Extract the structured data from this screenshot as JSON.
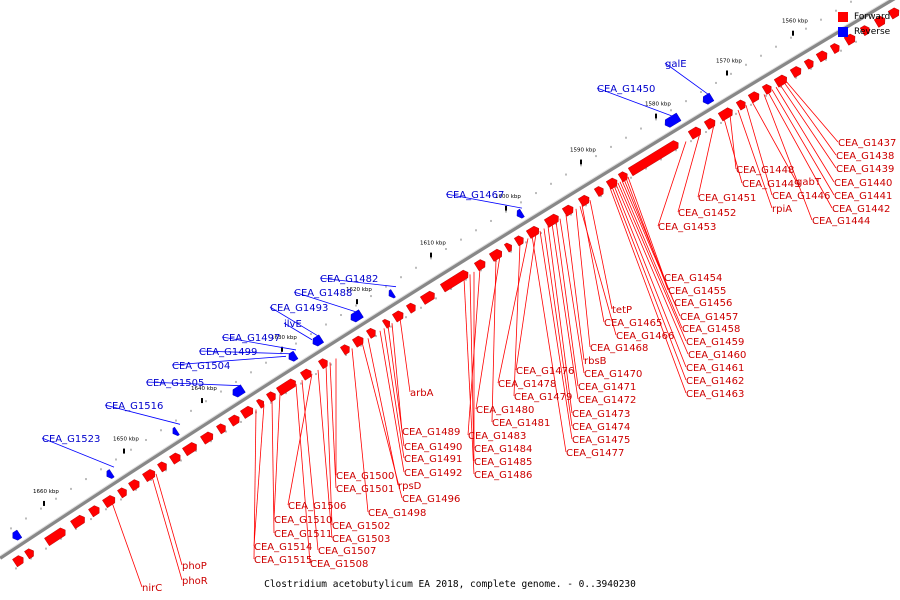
{
  "caption": "Clostridium acetobutylicum EA 2018, complete genome. - 0..3940230",
  "legend": [
    {
      "label": "Forward",
      "color": "#ff0000"
    },
    {
      "label": "Reverse",
      "color": "#0000ff"
    }
  ],
  "colors": {
    "forward": "#ff0000",
    "reverse": "#0000ff",
    "backbone": "#888888"
  },
  "kbp_ticks": [
    "1560 kbp",
    "1570 kbp",
    "1580 kbp",
    "1590 kbp",
    "1600 kbp",
    "1610 kbp",
    "1620 kbp",
    "1630 kbp",
    "1640 kbp",
    "1650 kbp",
    "1660 kbp"
  ],
  "reverse_labels": [
    "galE",
    "CEA_G1450",
    "CEA_G1467",
    "CEA_G1482",
    "CEA_G1488",
    "CEA_G1493",
    "ilvE",
    "CEA_G1497",
    "CEA_G1499",
    "CEA_G1504",
    "CEA_G1505",
    "CEA_G1516",
    "CEA_G1523"
  ],
  "forward_labels": [
    "CEA_G1437",
    "CEA_G1438",
    "CEA_G1439",
    "CEA_G1440",
    "CEA_G1441",
    "CEA_G1442",
    "CEA_G1444",
    "gabT",
    "CEA_G1446",
    "rpiA",
    "CEA_G1448",
    "CEA_G1449",
    "CEA_G1451",
    "CEA_G1452",
    "CEA_G1453",
    "CEA_G1454",
    "CEA_G1455",
    "CEA_G1456",
    "CEA_G1457",
    "CEA_G1458",
    "CEA_G1459",
    "CEA_G1460",
    "CEA_G1461",
    "CEA_G1462",
    "CEA_G1463",
    "tetP",
    "CEA_G1465",
    "CEA_G1466",
    "CEA_G1468",
    "rbsB",
    "CEA_G1470",
    "CEA_G1471",
    "CEA_G1472",
    "CEA_G1473",
    "CEA_G1474",
    "CEA_G1475",
    "CEA_G1476",
    "CEA_G1477",
    "CEA_G1478",
    "CEA_G1479",
    "CEA_G1480",
    "CEA_G1481",
    "CEA_G1483",
    "CEA_G1484",
    "CEA_G1485",
    "CEA_G1486",
    "arbA",
    "CEA_G1489",
    "CEA_G1490",
    "CEA_G1491",
    "CEA_G1492",
    "rpsD",
    "CEA_G1496",
    "CEA_G1498",
    "CEA_G1500",
    "CEA_G1501",
    "CEA_G1502",
    "CEA_G1503",
    "CEA_G1506",
    "CEA_G1507",
    "CEA_G1508",
    "CEA_G1510",
    "CEA_G1511",
    "CEA_G1514",
    "CEA_G1515",
    "phoP",
    "phoR",
    "nirC"
  ]
}
